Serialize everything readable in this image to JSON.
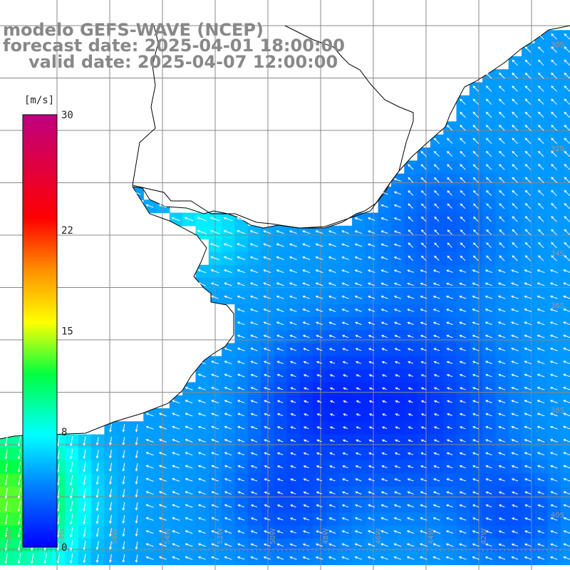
{
  "title": {
    "model": "modelo GEFS-WAVE (NCEP)",
    "forecast": "forecast date: 2025-04-01 18:00:00",
    "valid": "valid date: 2025-04-07 12:00:00"
  },
  "colorbar": {
    "unit": "[m/s]",
    "ticks": [
      {
        "label": "30",
        "value": 30
      },
      {
        "label": "22",
        "value": 22
      },
      {
        "label": "15",
        "value": 15
      },
      {
        "label": "8",
        "value": 8
      },
      {
        "label": "0",
        "value": 0
      }
    ],
    "range": [
      0,
      30
    ],
    "colors": [
      "#0000ff",
      "#00a0ff",
      "#00ffff",
      "#00ff00",
      "#ffff00",
      "#ff8000",
      "#ff0000",
      "#c00080"
    ]
  },
  "map": {
    "field": "wind speed",
    "lat_labels": [
      "30S",
      "32S",
      "34S",
      "36S",
      "38S",
      "40S"
    ],
    "lon_labels": [
      "60W",
      "58W",
      "56W",
      "54W",
      "52W",
      "50W",
      "48W",
      "46W",
      "44W",
      "42W"
    ],
    "colors": {
      "land": "#ffffff",
      "coast": "#000000",
      "grid": "#888888",
      "arrow": "#ffffff"
    }
  }
}
